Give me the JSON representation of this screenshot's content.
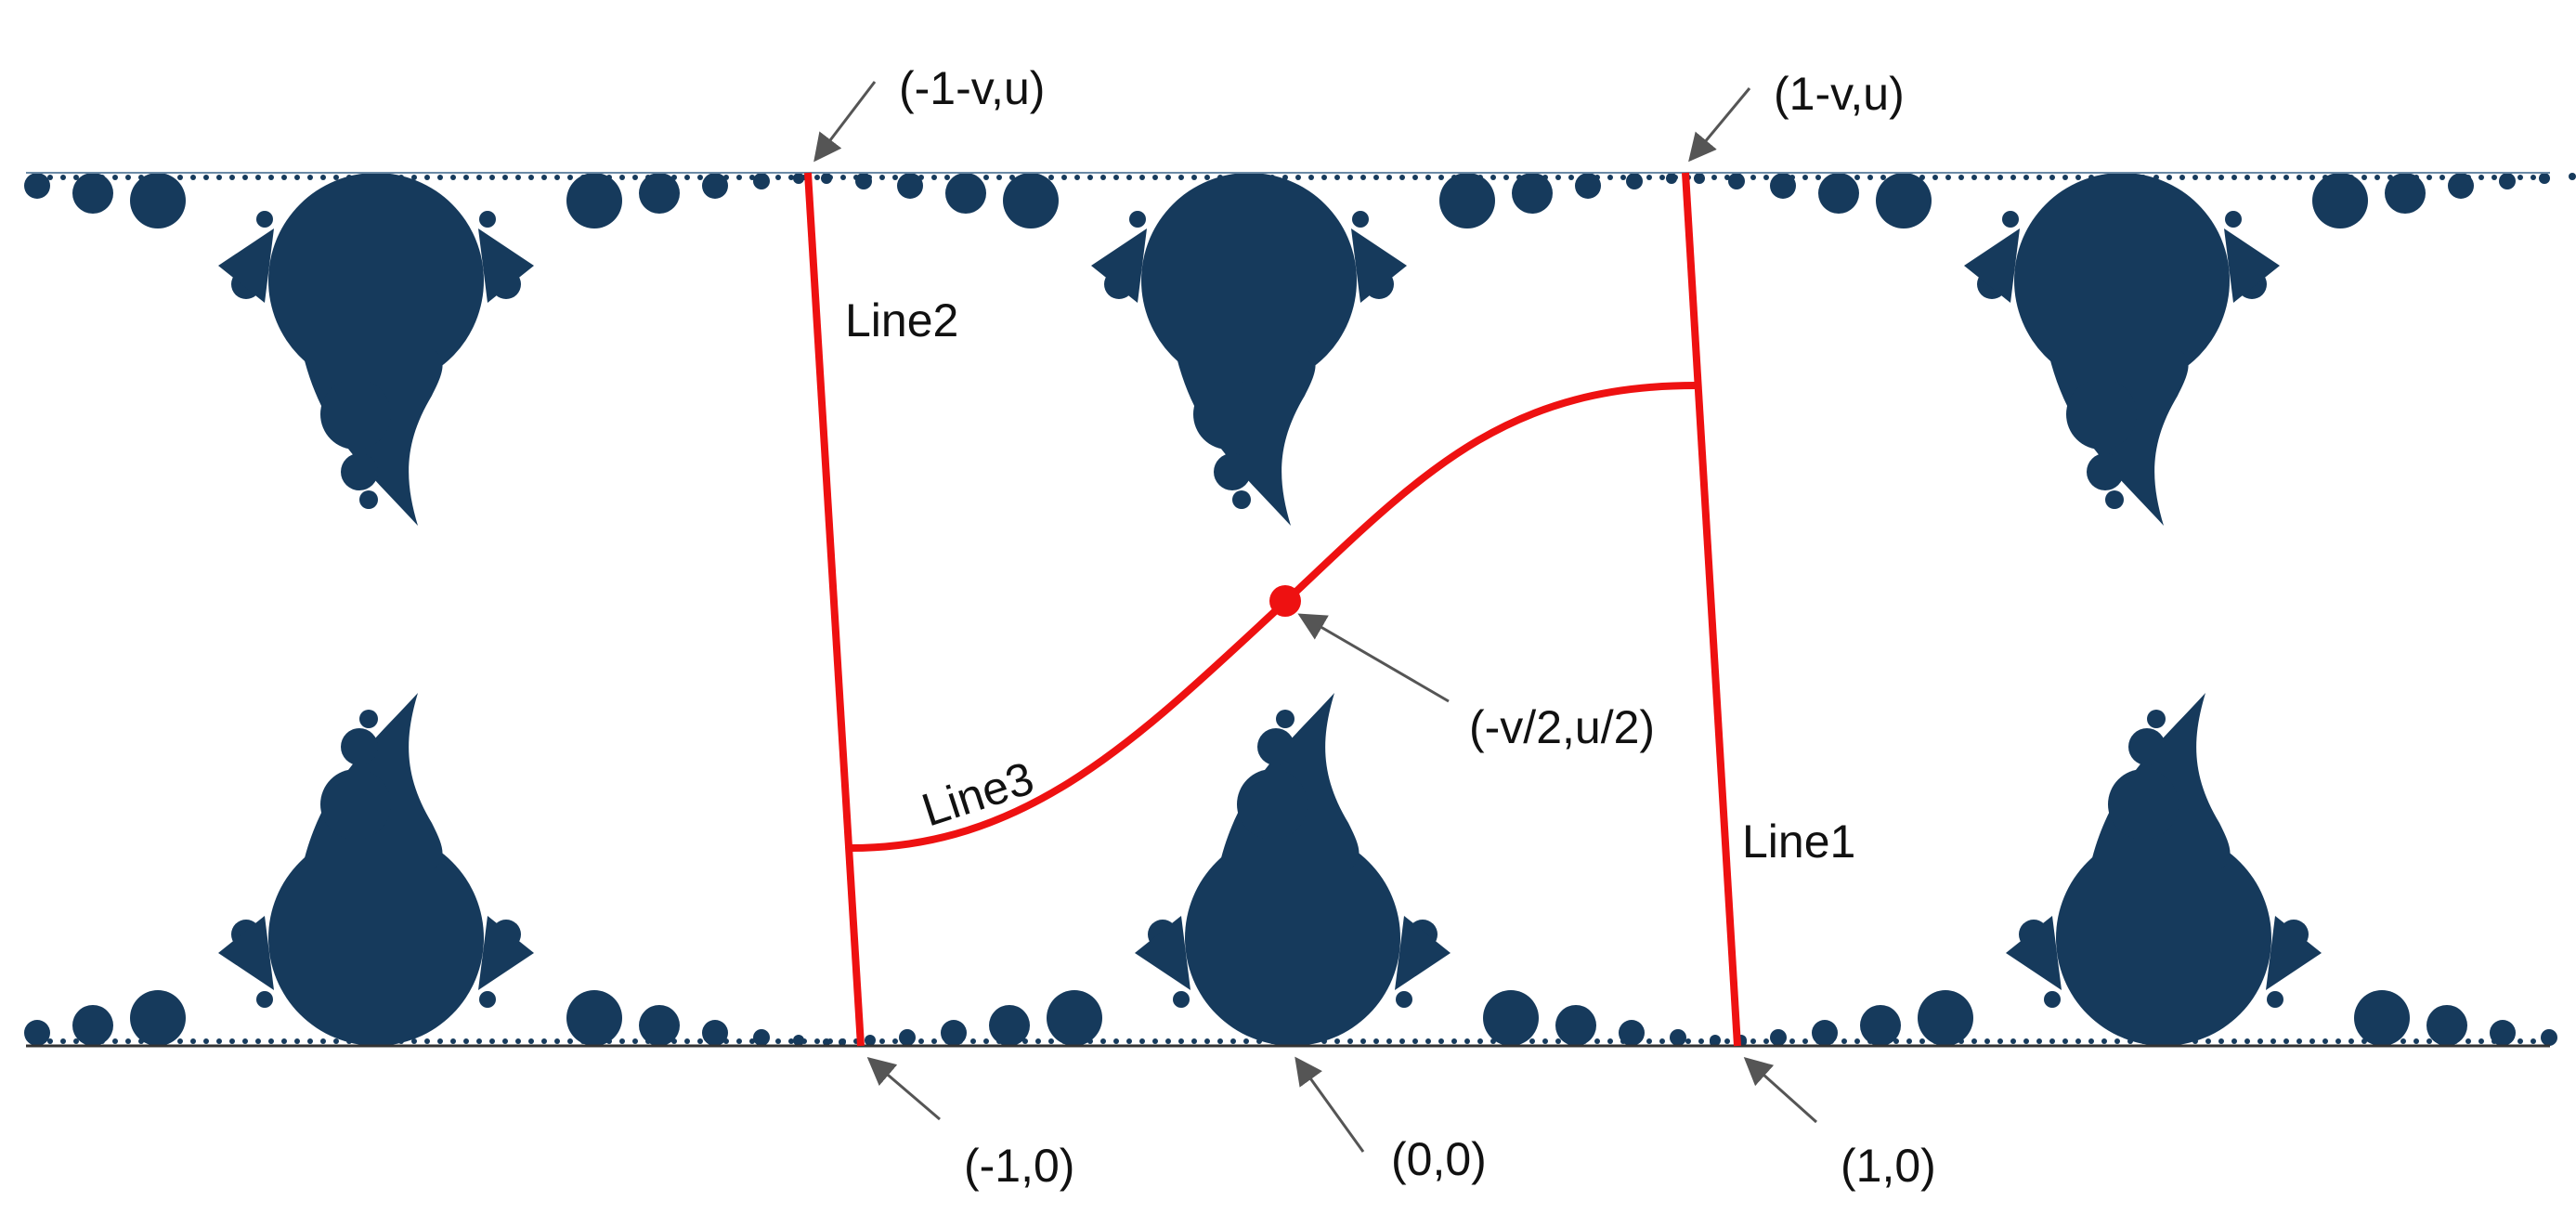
{
  "colors": {
    "fractal": "#163a5c",
    "curve": "#ee1111",
    "arrow": "#555555",
    "boundary": "#333333",
    "background": "#ffffff"
  },
  "labels": {
    "line1": "Line1",
    "line2": "Line2",
    "line3": "Line3"
  },
  "points": {
    "p_minus1_minus_v_u": "(-1-v,u)",
    "p_1_minus_v_u": "(1-v,u)",
    "p_minus_v2_u2": "(-v/2,u/2)",
    "p_minus1_0": "(-1,0)",
    "p_0_0": "(0,0)",
    "p_1_0": "(1,0)"
  }
}
